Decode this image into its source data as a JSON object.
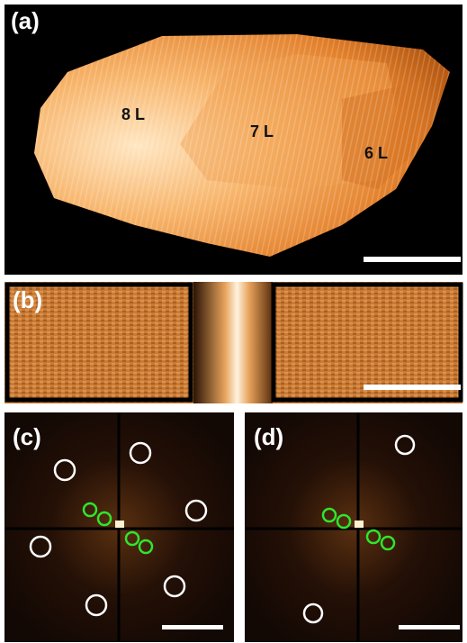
{
  "panels": [
    {
      "label": "(a)",
      "annotations": [
        "8 L",
        "7 L",
        "6 L"
      ]
    },
    {
      "label": "(b)"
    },
    {
      "label": "(c)"
    },
    {
      "label": "(d)"
    }
  ]
}
